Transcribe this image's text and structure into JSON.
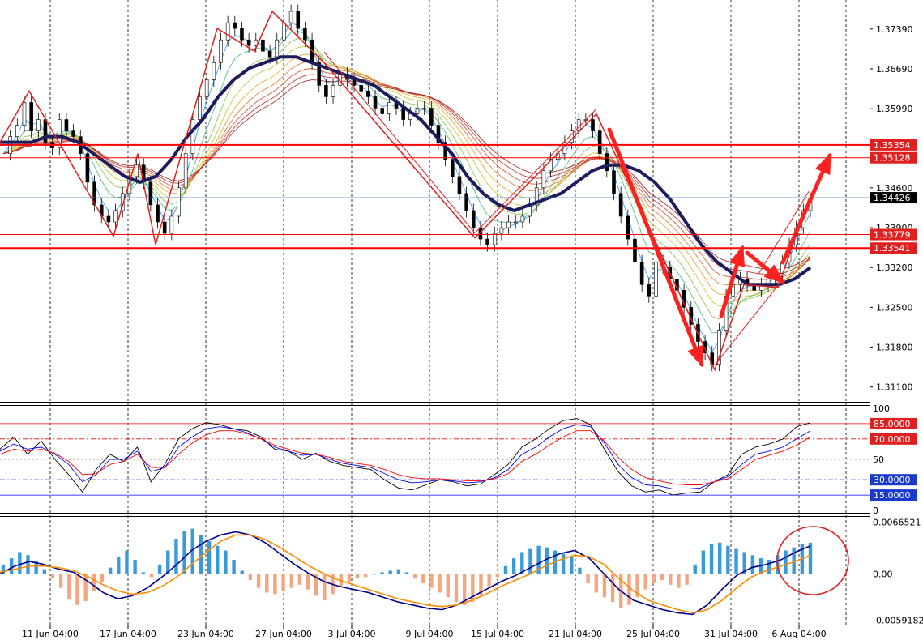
{
  "chart_data": [
    {
      "type": "candlestick",
      "panel": "price",
      "y_ticks": [
        "1.37390",
        "1.36690",
        "1.35990",
        "1.34600",
        "1.33900",
        "1.33200",
        "1.32500",
        "1.31800",
        "1.31100"
      ],
      "y_tick_values": [
        1.3739,
        1.3669,
        1.3599,
        1.346,
        1.339,
        1.332,
        1.325,
        1.318,
        1.311
      ],
      "ylim": [
        1.3084,
        1.379
      ],
      "x_ticks": [
        "11 Jun 04:00",
        "17 Jun 04:00",
        "23 Jun 04:00",
        "27 Jun 04:00",
        "3 Jul 04:00",
        "9 Jul 04:00",
        "15 Jul 04:00",
        "21 Jul 04:00",
        "25 Jul 04:00",
        "31 Jul 04:00",
        "6 Aug 04:00"
      ],
      "horizontal_levels": [
        {
          "label": "1.35354",
          "value": 1.35354,
          "color": "#ff0000",
          "thick": true
        },
        {
          "label": "1.35128",
          "value": 1.35128,
          "color": "#ff0000",
          "thick": false
        },
        {
          "label": "1.33779",
          "value": 1.33779,
          "color": "#ff0000",
          "thick": false
        },
        {
          "label": "1.33541",
          "value": 1.33541,
          "color": "#ff0000",
          "thick": true
        }
      ],
      "current_price": {
        "label": "1.34426",
        "value": 1.34426,
        "color": "#4a7fd1"
      },
      "close_series": [
        1.352,
        1.355,
        1.357,
        1.361,
        1.356,
        1.358,
        1.354,
        1.353,
        1.358,
        1.356,
        1.355,
        1.352,
        1.347,
        1.343,
        1.341,
        1.34,
        1.342,
        1.345,
        1.348,
        1.35,
        1.347,
        1.343,
        1.34,
        1.338,
        1.341,
        1.346,
        1.352,
        1.358,
        1.362,
        1.365,
        1.368,
        1.372,
        1.375,
        1.374,
        1.372,
        1.371,
        1.372,
        1.37,
        1.369,
        1.372,
        1.375,
        1.377,
        1.374,
        1.372,
        1.368,
        1.364,
        1.362,
        1.364,
        1.366,
        1.365,
        1.364,
        1.363,
        1.362,
        1.36,
        1.359,
        1.361,
        1.36,
        1.358,
        1.359,
        1.36,
        1.36,
        1.357,
        1.354,
        1.351,
        1.348,
        1.345,
        1.342,
        1.339,
        1.337,
        1.336,
        1.338,
        1.339,
        1.34,
        1.34,
        1.341,
        1.343,
        1.346,
        1.349,
        1.351,
        1.352,
        1.354,
        1.356,
        1.358,
        1.358,
        1.356,
        1.352,
        1.349,
        1.345,
        1.341,
        1.337,
        1.333,
        1.329,
        1.327,
        1.333,
        1.332,
        1.33,
        1.328,
        1.325,
        1.322,
        1.319,
        1.317,
        1.315,
        1.321,
        1.327,
        1.329,
        1.33,
        1.329,
        1.328,
        1.329,
        1.33,
        1.331,
        1.333,
        1.336,
        1.339,
        1.342,
        1.344
      ],
      "ema_thick_series": [
        1.354,
        1.354,
        1.354,
        1.355,
        1.355,
        1.354,
        1.352,
        1.35,
        1.348,
        1.347,
        1.348,
        1.351,
        1.355,
        1.358,
        1.362,
        1.365,
        1.367,
        1.368,
        1.369,
        1.369,
        1.368,
        1.367,
        1.366,
        1.365,
        1.364,
        1.362,
        1.36,
        1.358,
        1.355,
        1.352,
        1.348,
        1.345,
        1.343,
        1.342,
        1.343,
        1.344,
        1.345,
        1.347,
        1.349,
        1.35,
        1.35,
        1.349,
        1.347,
        1.344,
        1.34,
        1.336,
        1.333,
        1.331,
        1.329,
        1.329,
        1.329,
        1.33,
        1.332
      ],
      "arrows": [
        "down-to-1.3145",
        "up-to-1.3360",
        "down-to-1.3290",
        "up-to-1.3520"
      ]
    },
    {
      "type": "line",
      "panel": "stochastic",
      "levels": [
        {
          "label": "85.0000",
          "value": 85,
          "color": "#ff0000"
        },
        {
          "label": "70.0000",
          "value": 70,
          "color": "#ff0000"
        },
        {
          "label": "30.0000",
          "value": 30,
          "color": "#0000ff"
        },
        {
          "label": "15.0000",
          "value": 15,
          "color": "#0000ff"
        }
      ],
      "axis_labels": [
        "100",
        "50",
        "0"
      ],
      "ylim": [
        0,
        100
      ],
      "series": [
        {
          "color": "#000000",
          "values": [
            60,
            72,
            55,
            68,
            50,
            35,
            18,
            40,
            55,
            48,
            62,
            28,
            45,
            70,
            80,
            86,
            84,
            80,
            78,
            72,
            60,
            58,
            50,
            56,
            48,
            44,
            42,
            40,
            30,
            22,
            20,
            25,
            30,
            28,
            24,
            26,
            35,
            45,
            62,
            70,
            80,
            88,
            90,
            84,
            60,
            38,
            24,
            18,
            20,
            15,
            17,
            18,
            28,
            35,
            55,
            62,
            65,
            70,
            82,
            86
          ]
        },
        {
          "color": "#0000ff",
          "values": [
            58,
            65,
            60,
            62,
            55,
            45,
            28,
            35,
            50,
            50,
            58,
            38,
            42,
            62,
            72,
            80,
            82,
            80,
            76,
            70,
            62,
            58,
            54,
            55,
            50,
            46,
            44,
            42,
            36,
            30,
            27,
            28,
            30,
            29,
            27,
            28,
            32,
            40,
            55,
            62,
            72,
            80,
            84,
            82,
            66,
            45,
            32,
            25,
            24,
            21,
            21,
            22,
            28,
            33,
            45,
            55,
            58,
            62,
            70,
            78
          ]
        },
        {
          "color": "#ff0000",
          "values": [
            55,
            60,
            58,
            60,
            56,
            48,
            35,
            36,
            45,
            48,
            55,
            42,
            42,
            55,
            66,
            74,
            78,
            78,
            75,
            70,
            64,
            60,
            56,
            55,
            52,
            48,
            46,
            44,
            40,
            35,
            32,
            31,
            31,
            30,
            29,
            29,
            31,
            36,
            48,
            55,
            64,
            72,
            78,
            78,
            68,
            52,
            40,
            32,
            29,
            26,
            25,
            25,
            28,
            31,
            40,
            50,
            54,
            58,
            64,
            72
          ]
        }
      ]
    },
    {
      "type": "bar",
      "panel": "macd",
      "axis_labels": [
        "0.0066521",
        "0.00",
        "-0.0059182"
      ],
      "ylim": [
        -0.0062,
        0.0069
      ],
      "histogram": [
        0.0012,
        0.002,
        0.0028,
        0.0024,
        0.0016,
        0.0006,
        -0.0006,
        -0.0018,
        -0.0032,
        -0.004,
        -0.0035,
        -0.0022,
        -0.001,
        0.0008,
        0.0022,
        0.003,
        0.0018,
        0.0002,
        -0.0004,
        0.0012,
        0.003,
        0.0045,
        0.0055,
        0.0058,
        0.005,
        0.0042,
        0.0036,
        0.003,
        0.0018,
        0.0004,
        -0.0008,
        -0.0018,
        -0.0024,
        -0.0026,
        -0.0022,
        -0.0018,
        -0.0014,
        -0.002,
        -0.0028,
        -0.0034,
        -0.0026,
        -0.0016,
        -0.001,
        -0.0006,
        -0.0004,
        0.0,
        0.0002,
        0.0004,
        0.0006,
        0.0002,
        -0.0006,
        -0.0012,
        -0.0018,
        -0.0024,
        -0.003,
        -0.0036,
        -0.004,
        -0.0036,
        -0.0028,
        -0.0016,
        -0.0004,
        0.001,
        0.002,
        0.0028,
        0.0032,
        0.0036,
        0.0034,
        0.003,
        0.0026,
        0.0022,
        0.0008,
        -0.0012,
        -0.0024,
        -0.003,
        -0.0036,
        -0.0044,
        -0.004,
        -0.003,
        -0.002,
        -0.0012,
        -0.0008,
        -0.0014,
        -0.0018,
        -0.0014,
        0.0012,
        0.003,
        0.0038,
        0.004,
        0.0036,
        0.0032,
        0.0028,
        0.0024,
        0.002,
        0.0018,
        0.0024,
        0.003,
        0.0034,
        0.0038,
        0.004
      ],
      "series": [
        {
          "color": "#00008b",
          "values": [
            0.0,
            0.001,
            0.0016,
            0.0012,
            0.0006,
            0.0002,
            -0.001,
            -0.0024,
            -0.0032,
            -0.0028,
            -0.0018,
            -0.0004,
            0.0012,
            0.003,
            0.0042,
            0.005,
            0.0054,
            0.005,
            0.004,
            0.0026,
            0.0012,
            0.0,
            -0.001,
            -0.0016,
            -0.002,
            -0.0024,
            -0.003,
            -0.0036,
            -0.004,
            -0.0044,
            -0.0046,
            -0.004,
            -0.003,
            -0.002,
            -0.001,
            -0.0002,
            0.0008,
            0.0018,
            0.0026,
            0.003,
            0.002,
            0.0,
            -0.002,
            -0.0034,
            -0.004,
            -0.0046,
            -0.005,
            -0.0052,
            -0.004,
            -0.002,
            -0.0002,
            0.0008,
            0.0012,
            0.0018,
            0.0028,
            0.0036
          ]
        },
        {
          "color": "#ff8c00",
          "values": [
            0.0002,
            0.0006,
            0.001,
            0.001,
            0.0008,
            0.0004,
            -0.0004,
            -0.0014,
            -0.0022,
            -0.0026,
            -0.0024,
            -0.0016,
            -0.0004,
            0.0012,
            0.0028,
            0.0042,
            0.005,
            0.005,
            0.0044,
            0.0034,
            0.0022,
            0.001,
            0.0,
            -0.0008,
            -0.0014,
            -0.002,
            -0.0026,
            -0.0032,
            -0.0036,
            -0.004,
            -0.0042,
            -0.004,
            -0.0034,
            -0.0026,
            -0.0016,
            -0.0008,
            0.0,
            0.001,
            0.0018,
            0.0024,
            0.0022,
            0.0012,
            -0.0006,
            -0.0022,
            -0.0034,
            -0.004,
            -0.0046,
            -0.005,
            -0.0046,
            -0.0034,
            -0.0018,
            -0.0004,
            0.0004,
            0.001,
            0.0016,
            0.0024
          ]
        }
      ]
    }
  ],
  "annotation": {
    "type": "ellipse",
    "color": "#e02020"
  }
}
